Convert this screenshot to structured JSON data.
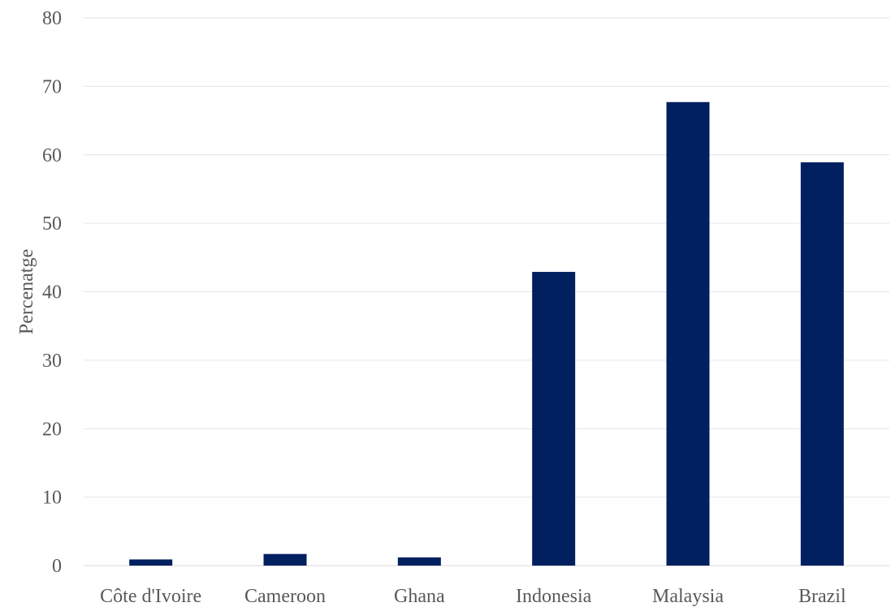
{
  "chart_data": {
    "type": "bar",
    "title": "",
    "xlabel": "",
    "ylabel": "Percenatge",
    "categories": [
      "Côte d'Ivoire",
      "Cameroon",
      "Ghana",
      "Indonesia",
      "Malaysia",
      "Brazil"
    ],
    "values": [
      0.9,
      1.7,
      1.2,
      42.9,
      67.7,
      58.9
    ],
    "ylim": [
      0,
      80
    ],
    "yticks": [
      0,
      10,
      20,
      30,
      40,
      50,
      60,
      70,
      80
    ],
    "grid": true,
    "legend": "none",
    "bar_color": "#002060",
    "grid_color": "#e6e6e6",
    "text_color": "#595959"
  }
}
